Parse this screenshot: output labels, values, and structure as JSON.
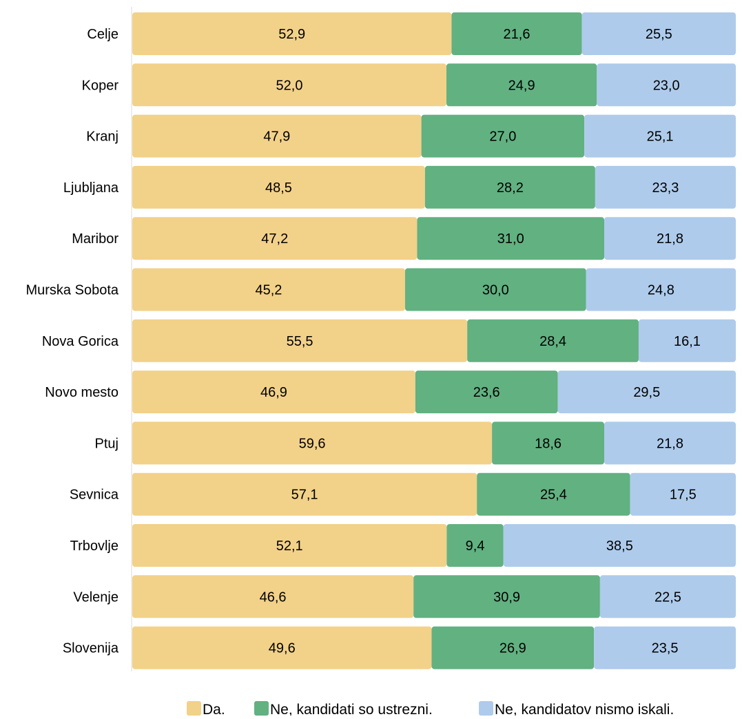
{
  "chart_data": {
    "type": "bar",
    "orientation": "horizontal",
    "stacked": true,
    "percent": true,
    "categories": [
      "Celje",
      "Koper",
      "Kranj",
      "Ljubljana",
      "Maribor",
      "Murska Sobota",
      "Nova Gorica",
      "Novo mesto",
      "Ptuj",
      "Sevnica",
      "Trbovlje",
      "Velenje",
      "Slovenija"
    ],
    "series": [
      {
        "name": "Da.",
        "color": "#F2D189",
        "values": [
          52.9,
          52.0,
          47.9,
          48.5,
          47.2,
          45.2,
          55.5,
          46.9,
          59.6,
          57.1,
          52.1,
          46.6,
          49.6
        ],
        "labels": [
          "52,9",
          "52,0",
          "47,9",
          "48,5",
          "47,2",
          "45,2",
          "55,5",
          "46,9",
          "59,6",
          "57,1",
          "52,1",
          "46,6",
          "49,6"
        ]
      },
      {
        "name": "Ne, kandidati so ustrezni.",
        "color": "#62B181",
        "values": [
          21.6,
          24.9,
          27.0,
          28.2,
          31.0,
          30.0,
          28.4,
          23.6,
          18.6,
          25.4,
          9.4,
          30.9,
          26.9
        ],
        "labels": [
          "21,6",
          "24,9",
          "27,0",
          "28,2",
          "31,0",
          "30,0",
          "28,4",
          "23,6",
          "18,6",
          "25,4",
          "9,4",
          "30,9",
          "26,9"
        ]
      },
      {
        "name": "Ne, kandidatov nismo iskali.",
        "color": "#AECBEB",
        "values": [
          25.5,
          23.0,
          25.1,
          23.3,
          21.8,
          24.8,
          16.1,
          29.5,
          21.8,
          17.5,
          38.5,
          22.5,
          23.5
        ],
        "labels": [
          "25,5",
          "23,0",
          "25,1",
          "23,3",
          "21,8",
          "24,8",
          "16,1",
          "29,5",
          "21,8",
          "17,5",
          "38,5",
          "22,5",
          "23,5"
        ]
      }
    ],
    "xlim": [
      0,
      100
    ],
    "grid": false,
    "legend_position": "bottom",
    "axis_color": "#D9D9D9"
  }
}
